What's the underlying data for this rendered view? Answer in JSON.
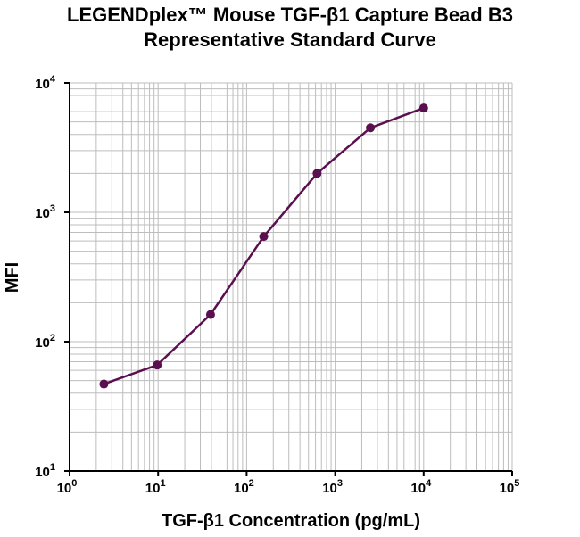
{
  "chart_data": {
    "type": "line",
    "title": "LEGENDplex™ Mouse TGF-β1 Capture Bead B3",
    "subtitle": "Representative Standard Curve",
    "xlabel": "TGF-β1 Concentration (pg/mL)",
    "ylabel": "MFI",
    "xscale": "log",
    "yscale": "log",
    "xlim": [
      1,
      100000
    ],
    "ylim": [
      10,
      10000
    ],
    "x_ticks": [
      {
        "base": "10",
        "exp": "0"
      },
      {
        "base": "10",
        "exp": "1"
      },
      {
        "base": "10",
        "exp": "2"
      },
      {
        "base": "10",
        "exp": "3"
      },
      {
        "base": "10",
        "exp": "4"
      },
      {
        "base": "10",
        "exp": "5"
      }
    ],
    "y_ticks": [
      {
        "base": "10",
        "exp": "1"
      },
      {
        "base": "10",
        "exp": "2"
      },
      {
        "base": "10",
        "exp": "3"
      },
      {
        "base": "10",
        "exp": "4"
      }
    ],
    "grid": true,
    "series": [
      {
        "color": "#5a0f4f",
        "x": [
          2.44,
          9.77,
          39.1,
          156,
          625,
          2500,
          10000
        ],
        "y": [
          47,
          66,
          162,
          650,
          2000,
          4500,
          6400
        ]
      }
    ]
  }
}
